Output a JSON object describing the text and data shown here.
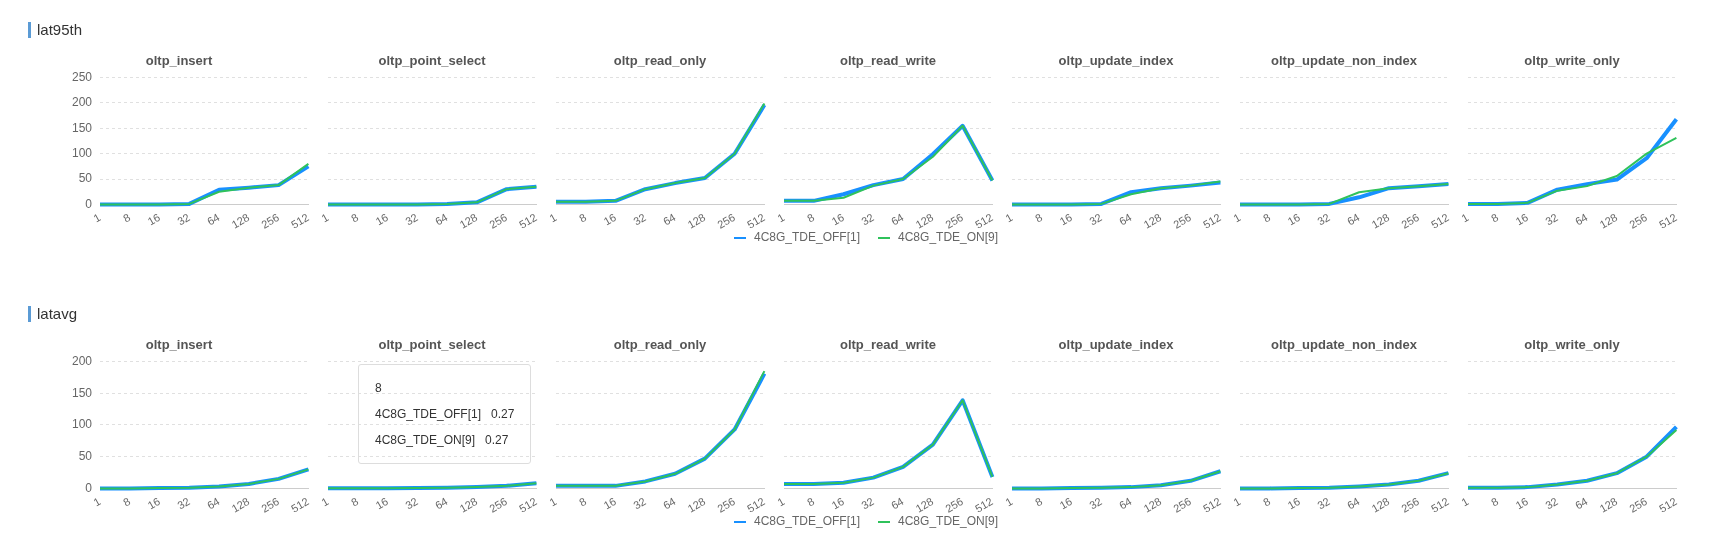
{
  "chart_data": [
    {
      "type": "line",
      "title": "oltp_insert",
      "annotations": [
        "lat95th"
      ],
      "categories": [
        "1",
        "8",
        "16",
        "32",
        "64",
        "128",
        "256",
        "512"
      ],
      "ylim": [
        0,
        250
      ],
      "yticks": [
        0,
        50,
        100,
        150,
        200,
        250
      ],
      "grid": "y",
      "series": [
        {
          "color": "#1890ff",
          "values": [
            0,
            0,
            0,
            1,
            29,
            33,
            38,
            75
          ]
        },
        {
          "color": "#2fc25b",
          "values": [
            0,
            0,
            0,
            1,
            25,
            33,
            38,
            80
          ]
        }
      ]
    },
    {
      "type": "line",
      "title": "oltp_point_select",
      "tick_labels": "x",
      "categories": [
        "1",
        "8",
        "16",
        "32",
        "64",
        "128",
        "256",
        "512"
      ],
      "ylim": [
        0,
        250
      ],
      "yticks": [
        0,
        50,
        100,
        150,
        200,
        250
      ],
      "grid": "y",
      "series": [
        {
          "color": "#1890ff",
          "values": [
            0,
            0,
            0,
            0,
            1,
            4,
            30,
            35
          ]
        },
        {
          "color": "#2fc25b",
          "values": [
            0,
            0,
            0,
            0,
            1,
            4,
            30,
            35
          ]
        }
      ]
    },
    {
      "type": "line",
      "title": "oltp_read_only",
      "tick_labels": "x",
      "categories": [
        "1",
        "8",
        "16",
        "32",
        "64",
        "128",
        "256",
        "512"
      ],
      "ylim": [
        0,
        250
      ],
      "yticks": [
        0,
        50,
        100,
        150,
        200,
        250
      ],
      "grid": "y",
      "series": [
        {
          "color": "#1890ff",
          "values": [
            5,
            5,
            7,
            30,
            42,
            52,
            100,
            196
          ]
        },
        {
          "color": "#2fc25b",
          "values": [
            5,
            5,
            7,
            30,
            42,
            52,
            100,
            199
          ]
        }
      ]
    },
    {
      "type": "line",
      "title": "oltp_read_write",
      "tick_labels": "x",
      "legend": "bottom",
      "categories": [
        "1",
        "8",
        "16",
        "32",
        "64",
        "128",
        "256",
        "512"
      ],
      "ylim": [
        0,
        250
      ],
      "yticks": [
        0,
        50,
        100,
        150,
        200,
        250
      ],
      "grid": "y",
      "series": [
        {
          "name": "4C8G_TDE_OFF[1]",
          "color": "#1890ff",
          "values": [
            7,
            7,
            20,
            38,
            50,
            99,
            155,
            47
          ]
        },
        {
          "name": "4C8G_TDE_ON[9]",
          "color": "#2fc25b",
          "values": [
            7,
            7,
            13,
            37,
            50,
            94,
            155,
            47
          ]
        }
      ]
    },
    {
      "type": "line",
      "title": "oltp_update_index",
      "tick_labels": "x",
      "categories": [
        "1",
        "8",
        "16",
        "32",
        "64",
        "128",
        "256",
        "512"
      ],
      "ylim": [
        0,
        250
      ],
      "yticks": [
        0,
        50,
        100,
        150,
        200,
        250
      ],
      "grid": "y",
      "series": [
        {
          "color": "#1890ff",
          "values": [
            0,
            0,
            0,
            1,
            24,
            32,
            37,
            43
          ]
        },
        {
          "color": "#2fc25b",
          "values": [
            0,
            0,
            0,
            1,
            20,
            32,
            37,
            45
          ]
        }
      ]
    },
    {
      "type": "line",
      "title": "oltp_update_non_index",
      "tick_labels": "x",
      "categories": [
        "1",
        "8",
        "16",
        "32",
        "64",
        "128",
        "256",
        "512"
      ],
      "ylim": [
        0,
        250
      ],
      "yticks": [
        0,
        50,
        100,
        150,
        200,
        250
      ],
      "grid": "y",
      "series": [
        {
          "color": "#1890ff",
          "values": [
            0,
            0,
            0,
            1,
            14,
            32,
            36,
            40
          ]
        },
        {
          "color": "#2fc25b",
          "values": [
            0,
            0,
            0,
            1,
            24,
            32,
            36,
            40
          ]
        }
      ]
    },
    {
      "type": "line",
      "title": "oltp_write_only",
      "tick_labels": "x",
      "categories": [
        "1",
        "8",
        "16",
        "32",
        "64",
        "128",
        "256",
        "512"
      ],
      "ylim": [
        0,
        250
      ],
      "yticks": [
        0,
        50,
        100,
        150,
        200,
        250
      ],
      "grid": "y",
      "series": [
        {
          "color": "#1890ff",
          "values": [
            1,
            1,
            3,
            29,
            40,
            49,
            91,
            168
          ]
        },
        {
          "color": "#2fc25b",
          "values": [
            1,
            1,
            3,
            27,
            36,
            56,
            100,
            131
          ]
        }
      ]
    },
    {
      "type": "line",
      "title": "oltp_insert",
      "annotations": [
        "latavg"
      ],
      "categories": [
        "1",
        "8",
        "16",
        "32",
        "64",
        "128",
        "256",
        "512"
      ],
      "ylim": [
        0,
        200
      ],
      "yticks": [
        0,
        50,
        100,
        150,
        200
      ],
      "grid": "y",
      "series": [
        {
          "color": "#1890ff",
          "values": [
            0,
            0,
            0.5,
            1,
            3,
            7,
            15,
            30
          ]
        },
        {
          "color": "#2fc25b",
          "values": [
            0,
            0,
            0.5,
            1,
            3,
            7,
            15,
            30
          ]
        }
      ]
    },
    {
      "type": "line",
      "title": "oltp_point_select",
      "tick_labels": "x",
      "annotations": [
        "8\n4C8G_TDE_OFF[1]   0.27\n4C8G_TDE_ON[9]   0.27"
      ],
      "categories": [
        "1",
        "8",
        "16",
        "32",
        "64",
        "128",
        "256",
        "512"
      ],
      "ylim": [
        0,
        200
      ],
      "yticks": [
        0,
        50,
        100,
        150,
        200
      ],
      "grid": "y",
      "series": [
        {
          "color": "#1890ff",
          "values": [
            0.27,
            0.27,
            0.3,
            0.5,
            1,
            2,
            4,
            8
          ]
        },
        {
          "color": "#2fc25b",
          "values": [
            0.27,
            0.27,
            0.3,
            0.5,
            1,
            2,
            4,
            8
          ]
        }
      ]
    },
    {
      "type": "line",
      "title": "oltp_read_only",
      "tick_labels": "x",
      "categories": [
        "1",
        "8",
        "16",
        "32",
        "64",
        "128",
        "256",
        "512"
      ],
      "ylim": [
        0,
        200
      ],
      "yticks": [
        0,
        50,
        100,
        150,
        200
      ],
      "grid": "y",
      "series": [
        {
          "color": "#1890ff",
          "values": [
            4,
            4,
            4,
            11,
            23,
            47,
            93,
            181
          ]
        },
        {
          "color": "#2fc25b",
          "values": [
            4,
            4,
            4,
            11,
            23,
            47,
            93,
            185
          ]
        }
      ]
    },
    {
      "type": "line",
      "title": "oltp_read_write",
      "tick_labels": "x",
      "legend": "bottom",
      "categories": [
        "1",
        "8",
        "16",
        "32",
        "64",
        "128",
        "256",
        "512"
      ],
      "ylim": [
        0,
        200
      ],
      "yticks": [
        0,
        50,
        100,
        150,
        200
      ],
      "grid": "y",
      "series": [
        {
          "name": "4C8G_TDE_OFF[1]",
          "color": "#1890ff",
          "values": [
            7,
            7,
            9,
            17,
            34,
            69,
            139,
            18
          ]
        },
        {
          "name": "4C8G_TDE_ON[9]",
          "color": "#2fc25b",
          "values": [
            7,
            7,
            9,
            17,
            34,
            69,
            139,
            18
          ]
        }
      ]
    },
    {
      "type": "line",
      "title": "oltp_update_index",
      "tick_labels": "x",
      "categories": [
        "1",
        "8",
        "16",
        "32",
        "64",
        "128",
        "256",
        "512"
      ],
      "ylim": [
        0,
        200
      ],
      "yticks": [
        0,
        50,
        100,
        150,
        200
      ],
      "grid": "y",
      "series": [
        {
          "color": "#1890ff",
          "values": [
            0,
            0,
            0.5,
            1,
            2,
            5,
            12,
            27
          ]
        },
        {
          "color": "#2fc25b",
          "values": [
            0,
            0,
            0.5,
            1,
            2,
            5,
            12,
            27
          ]
        }
      ]
    },
    {
      "type": "line",
      "title": "oltp_update_non_index",
      "tick_labels": "x",
      "categories": [
        "1",
        "8",
        "16",
        "32",
        "64",
        "128",
        "256",
        "512"
      ],
      "ylim": [
        0,
        200
      ],
      "yticks": [
        0,
        50,
        100,
        150,
        200
      ],
      "grid": "y",
      "series": [
        {
          "color": "#1890ff",
          "values": [
            0,
            0,
            0.5,
            1,
            3,
            6,
            12,
            24
          ]
        },
        {
          "color": "#2fc25b",
          "values": [
            0,
            0,
            0.5,
            1,
            3,
            6,
            12,
            24
          ]
        }
      ]
    },
    {
      "type": "line",
      "title": "oltp_write_only",
      "tick_labels": "x",
      "categories": [
        "1",
        "8",
        "16",
        "32",
        "64",
        "128",
        "256",
        "512"
      ],
      "ylim": [
        0,
        200
      ],
      "yticks": [
        0,
        50,
        100,
        150,
        200
      ],
      "grid": "y",
      "series": [
        {
          "color": "#1890ff",
          "values": [
            1,
            1,
            2,
            6,
            12,
            24,
            50,
            97
          ]
        },
        {
          "color": "#2fc25b",
          "values": [
            1,
            1,
            2,
            6,
            12,
            24,
            50,
            92
          ]
        }
      ]
    }
  ]
}
